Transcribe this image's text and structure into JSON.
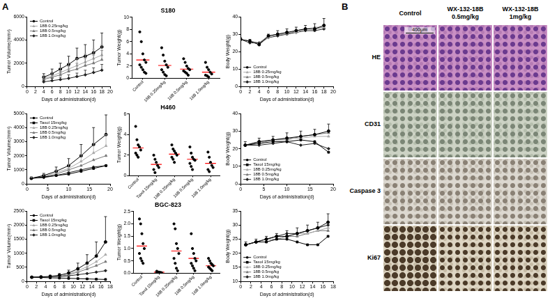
{
  "panel_labels": [
    "A",
    "B"
  ],
  "chart_data": [
    {
      "type": "line",
      "x_label": "Days of administration(d)",
      "y_label": "Tumor Volume(mm³)",
      "x": [
        4,
        6,
        8,
        10,
        12,
        14,
        16,
        18
      ],
      "xlim": [
        0,
        20
      ],
      "xticks": [
        0,
        2,
        4,
        6,
        8,
        10,
        12,
        14,
        16,
        18,
        20
      ],
      "ylim": [
        0,
        6000
      ],
      "yticks": [
        0,
        2000,
        4000,
        6000
      ],
      "grid": false,
      "legend": "upper left",
      "series": [
        {
          "name": "Control",
          "color": "#000000",
          "marker": "circle",
          "values": [
            800,
            1100,
            1500,
            1900,
            2400,
            2600,
            2900,
            3400
          ],
          "errors": [
            300,
            400,
            500,
            700,
            900,
            1000,
            1100,
            1200
          ]
        },
        {
          "name": "18B 0.25mg/kg",
          "color": "#aaaaaa",
          "marker": "triangle",
          "values": [
            700,
            900,
            1200,
            1500,
            1800,
            2100,
            2400,
            2700
          ],
          "errors": [
            250,
            300,
            400,
            500,
            600,
            700,
            800,
            900
          ]
        },
        {
          "name": "18B 0.5mg/kg",
          "color": "#777777",
          "marker": "triangle",
          "values": [
            600,
            800,
            1000,
            1300,
            1500,
            1800,
            2000,
            2300
          ],
          "errors": [
            200,
            250,
            300,
            400,
            500,
            600,
            700,
            800
          ]
        },
        {
          "name": "18B 1.0mg/kg",
          "color": "#222222",
          "marker": "diamond",
          "values": [
            400,
            500,
            600,
            700,
            850,
            1000,
            1200,
            1400
          ],
          "errors": [
            150,
            200,
            200,
            300,
            300,
            400,
            400,
            500
          ]
        }
      ]
    },
    {
      "type": "scatter",
      "title": "S180",
      "y_label": "Tumor Weight(g)",
      "categories": [
        "Control",
        "18B 0.25mg/kg",
        "18B 0.5mg/kg",
        "18B 1.0mg/kg"
      ],
      "values": [
        [
          7.6,
          6.0,
          4.0,
          3.0,
          2.6,
          2.2,
          1.8,
          1.4,
          1.0,
          0.8
        ],
        [
          5.0,
          3.8,
          2.8,
          2.2,
          1.8,
          1.4,
          1.0,
          0.6,
          0.4
        ],
        [
          3.2,
          2.6,
          2.0,
          1.6,
          1.4,
          1.2,
          1.0,
          0.8,
          0.5
        ],
        [
          2.6,
          1.8,
          1.4,
          1.0,
          0.7,
          0.5,
          0.4,
          0.2
        ]
      ],
      "means": [
        3.0,
        2.1,
        1.5,
        1.0
      ],
      "color": "#000000",
      "ylim": [
        0,
        10
      ],
      "yticks": [
        0,
        2,
        4,
        6,
        8,
        10
      ],
      "grid": false
    },
    {
      "type": "line",
      "x_label": "Days of administration(d)",
      "y_label": "Body Weight(g)",
      "x": [
        0,
        2,
        4,
        6,
        8,
        10,
        12,
        14,
        16,
        18
      ],
      "xlim": [
        0,
        20
      ],
      "xticks": [
        0,
        2,
        4,
        6,
        8,
        10,
        12,
        14,
        16,
        18,
        20
      ],
      "ylim": [
        0,
        40
      ],
      "yticks": [
        0,
        10,
        20,
        30,
        40
      ],
      "grid": false,
      "legend": "lower left",
      "series": [
        {
          "name": "Control",
          "color": "#000000",
          "marker": "circle",
          "values": [
            27,
            26,
            24,
            29,
            30,
            31,
            32,
            33,
            33,
            35
          ],
          "errors": [
            1,
            1,
            1,
            1,
            2,
            2,
            2,
            2,
            3,
            4
          ]
        },
        {
          "name": "18B 0.25mg/kg",
          "color": "#aaaaaa",
          "marker": "triangle",
          "values": [
            27,
            26,
            24,
            28,
            30,
            31,
            31,
            33,
            34,
            34
          ]
        },
        {
          "name": "18B 0.5mg/kg",
          "color": "#777777",
          "marker": "triangle",
          "values": [
            27,
            26,
            25,
            29,
            30,
            30,
            32,
            33,
            33,
            34
          ]
        },
        {
          "name": "18B 1.0mg/kg",
          "color": "#222222",
          "marker": "diamond",
          "values": [
            27,
            25,
            25,
            28,
            29,
            30,
            31,
            32,
            32,
            33
          ]
        }
      ]
    },
    {
      "type": "line",
      "x_label": "Days of administration(d)",
      "y_label": "Tumor Volume(mm³)",
      "x": [
        1,
        4,
        7,
        10,
        13,
        16,
        19
      ],
      "xlim": [
        0,
        20
      ],
      "xticks": [
        0,
        5,
        10,
        15,
        20
      ],
      "ylim": [
        0,
        5000
      ],
      "yticks": [
        0,
        1000,
        2000,
        3000,
        4000,
        5000
      ],
      "grid": false,
      "legend": "upper left",
      "series": [
        {
          "name": "Control",
          "color": "#000000",
          "marker": "circle",
          "values": [
            400,
            600,
            900,
            1300,
            2000,
            2800,
            3500
          ],
          "errors": [
            100,
            150,
            300,
            500,
            800,
            1200,
            1400
          ]
        },
        {
          "name": "Taxol 15mg/kg",
          "color": "#000000",
          "marker": "square",
          "values": [
            400,
            500,
            600,
            700,
            900,
            1100,
            1300
          ]
        },
        {
          "name": "18B 0.25mg/kg",
          "color": "#aaaaaa",
          "marker": "triangle",
          "values": [
            400,
            550,
            800,
            1100,
            1600,
            2200,
            2700
          ],
          "errors": [
            100,
            150,
            200,
            300,
            500,
            700,
            800
          ]
        },
        {
          "name": "18B 0.5mg/kg",
          "color": "#777777",
          "marker": "triangle",
          "values": [
            400,
            500,
            700,
            1000,
            1300,
            1700,
            2000
          ]
        },
        {
          "name": "18B 1.0mg/kg",
          "color": "#222222",
          "marker": "diamond",
          "values": [
            400,
            450,
            600,
            800,
            1000,
            1200,
            1300
          ]
        }
      ]
    },
    {
      "type": "scatter",
      "title": "H460",
      "y_label": "Tumor Weight(g)",
      "categories": [
        "Control",
        "Taxol 15mg/kg",
        "18B 0.25mg/kg",
        "18B 0.5mg/kg",
        "18B 1.0mg/kg"
      ],
      "values": [
        [
          4.8,
          3.5,
          3.0,
          2.8,
          2.5,
          2.2,
          2.0,
          1.8
        ],
        [
          2.0,
          1.6,
          1.3,
          1.0,
          0.8,
          0.6,
          0.3
        ],
        [
          3.0,
          2.6,
          2.4,
          2.2,
          2.0,
          1.8,
          1.6,
          1.3
        ],
        [
          2.8,
          2.2,
          1.8,
          1.6,
          1.5,
          1.2,
          0.9,
          0.6
        ],
        [
          2.3,
          1.8,
          1.3,
          1.0,
          0.8,
          0.6,
          0.4
        ]
      ],
      "means": [
        2.7,
        1.1,
        2.1,
        1.6,
        1.2
      ],
      "color": "#000000",
      "ylim": [
        0,
        6
      ],
      "yticks": [
        0,
        2,
        4,
        6
      ],
      "grid": false
    },
    {
      "type": "line",
      "x_label": "Days of administration(d)",
      "y_label": "Body Weight(g)",
      "x": [
        1,
        4,
        7,
        10,
        13,
        16,
        19
      ],
      "xlim": [
        0,
        20
      ],
      "xticks": [
        0,
        5,
        10,
        15,
        20
      ],
      "ylim": [
        0,
        40
      ],
      "yticks": [
        0,
        10,
        20,
        30,
        40
      ],
      "grid": false,
      "legend": "lower left",
      "series": [
        {
          "name": "Control",
          "color": "#000000",
          "marker": "circle",
          "values": [
            22,
            24,
            25,
            26,
            27,
            28,
            30
          ],
          "errors": [
            2,
            2,
            2,
            3,
            3,
            3,
            4
          ]
        },
        {
          "name": "Taxol 15mg/kg",
          "color": "#000000",
          "marker": "square",
          "values": [
            22,
            23,
            24,
            24,
            25,
            24,
            18
          ]
        },
        {
          "name": "18B 0.25mg/kg",
          "color": "#aaaaaa",
          "marker": "triangle",
          "values": [
            22,
            23,
            25,
            26,
            26,
            27,
            27
          ]
        },
        {
          "name": "18B 0.5mg/kg",
          "color": "#777777",
          "marker": "triangle",
          "values": [
            22,
            24,
            25,
            25,
            27,
            28,
            29
          ]
        },
        {
          "name": "18B 1.0mg/kg",
          "color": "#222222",
          "marker": "diamond",
          "values": [
            22,
            22,
            23,
            24,
            22,
            23,
            20
          ]
        }
      ]
    },
    {
      "type": "line",
      "x_label": "Days of administration(d)",
      "y_label": "Tumor Volume(mm³)",
      "x": [
        1,
        3,
        5,
        7,
        9,
        11,
        13,
        15,
        17
      ],
      "xlim": [
        0,
        18
      ],
      "xticks": [
        0,
        2,
        4,
        6,
        8,
        10,
        12,
        14,
        16,
        18
      ],
      "ylim": [
        0,
        2500
      ],
      "yticks": [
        0,
        500,
        1000,
        1500,
        2000,
        2500
      ],
      "grid": false,
      "legend": "upper left",
      "series": [
        {
          "name": "Control",
          "color": "#000000",
          "marker": "circle",
          "values": [
            150,
            160,
            180,
            220,
            300,
            450,
            650,
            900,
            1400
          ],
          "errors": [
            20,
            30,
            40,
            60,
            100,
            200,
            300,
            500,
            900
          ]
        },
        {
          "name": "Taxol 15mg/kg",
          "color": "#000000",
          "marker": "square",
          "values": [
            150,
            140,
            130,
            120,
            110,
            100,
            90,
            80,
            70
          ]
        },
        {
          "name": "18B 0.25mg/kg",
          "color": "#aaaaaa",
          "marker": "triangle",
          "values": [
            150,
            160,
            170,
            200,
            260,
            380,
            520,
            700,
            950
          ]
        },
        {
          "name": "18B 0.5mg/kg",
          "color": "#777777",
          "marker": "triangle",
          "values": [
            150,
            155,
            165,
            190,
            240,
            330,
            440,
            560,
            700
          ]
        },
        {
          "name": "18B 1.0mg/kg",
          "color": "#222222",
          "marker": "diamond",
          "values": [
            150,
            150,
            160,
            170,
            200,
            240,
            280,
            330,
            380
          ]
        }
      ]
    },
    {
      "type": "scatter",
      "title": "BGC-823",
      "y_label": "Tumor Weight(g)",
      "categories": [
        "Control",
        "Taxol 15mg/kg",
        "18B 0.25mg/kg",
        "18B 0.5mg/kg",
        "18B 1.0mg/kg"
      ],
      "values": [
        [
          2.2,
          2.0,
          1.6,
          1.2,
          1.0,
          0.8,
          0.6,
          0.5,
          0.4
        ],
        [
          0.08,
          0.05,
          0.04,
          0.03,
          0.02,
          0.02,
          0.01
        ],
        [
          2.0,
          1.8,
          1.2,
          1.0,
          0.8,
          0.6,
          0.4,
          0.2,
          0.1
        ],
        [
          1.6,
          1.0,
          0.8,
          0.6,
          0.5,
          0.4,
          0.3,
          0.2,
          0.1
        ],
        [
          0.6,
          0.5,
          0.4,
          0.35,
          0.3,
          0.25,
          0.2,
          0.15,
          0.1
        ]
      ],
      "means": [
        1.1,
        0.04,
        0.9,
        0.6,
        0.3
      ],
      "color": "#000000",
      "ylim": [
        0,
        2.5
      ],
      "yticks": [
        {
          "value": 0,
          "label": "0.0"
        },
        0.5,
        {
          "value": 1,
          "label": "1.0"
        },
        1.5,
        {
          "value": 2,
          "label": "2.0"
        },
        2.5
      ],
      "grid": false
    },
    {
      "type": "line",
      "x_label": "Days of administration(d)",
      "y_label": "Body Weight(g)",
      "x": [
        1,
        3,
        5,
        7,
        9,
        11,
        13,
        15,
        17
      ],
      "xlim": [
        0,
        18
      ],
      "xticks": [
        0,
        2,
        4,
        6,
        8,
        10,
        12,
        14,
        16,
        18
      ],
      "ylim": [
        10,
        35
      ],
      "yticks": [
        10,
        15,
        20,
        25,
        30,
        35
      ],
      "grid": false,
      "legend": "lower left",
      "series": [
        {
          "name": "Control",
          "color": "#000000",
          "marker": "circle",
          "values": [
            23,
            24,
            25,
            26,
            26,
            27,
            28,
            29,
            31
          ],
          "errors": [
            1,
            1,
            1,
            1,
            2,
            2,
            2,
            2,
            3
          ]
        },
        {
          "name": "Taxol 15mg/kg",
          "color": "#000000",
          "marker": "square",
          "values": [
            23,
            24,
            24,
            25,
            25,
            24,
            23,
            23,
            26
          ]
        },
        {
          "name": "18B 0.25mg/kg",
          "color": "#aaaaaa",
          "marker": "triangle",
          "values": [
            23,
            24,
            25,
            25,
            26,
            27,
            27,
            28,
            29
          ]
        },
        {
          "name": "18B 0.5mg/kg",
          "color": "#777777",
          "marker": "triangle",
          "values": [
            23,
            24,
            24,
            25,
            26,
            26,
            27,
            28,
            28
          ]
        },
        {
          "name": "18B 1.0mg/kg",
          "color": "#222222",
          "marker": "diamond",
          "values": [
            23,
            24,
            25,
            26,
            27,
            27,
            28,
            29,
            30
          ]
        }
      ]
    }
  ],
  "histology": {
    "columns": [
      [
        "Control"
      ],
      [
        "WX-132-18B",
        "0.5mg/kg"
      ],
      [
        "WX-132-18B",
        "1mg/kg"
      ]
    ],
    "rows": [
      "HE",
      "CD31",
      "Caspase 3",
      "Ki67"
    ],
    "scale_bar": "400μm"
  }
}
